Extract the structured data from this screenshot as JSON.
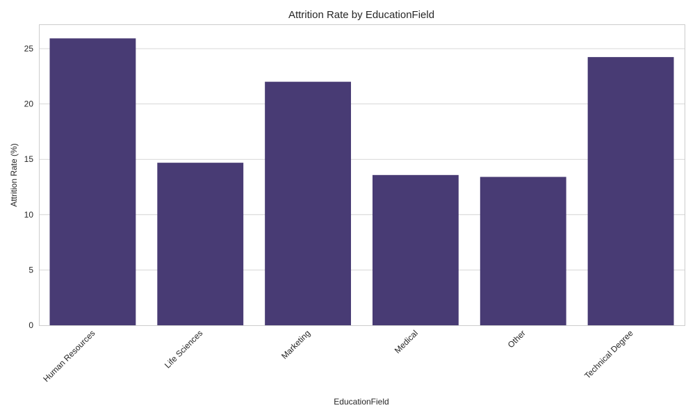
{
  "chart_data": {
    "type": "bar",
    "title": "Attrition Rate by EducationField",
    "xlabel": "EducationField",
    "ylabel": "Attrition Rate (%)",
    "categories": [
      "Human Resources",
      "Life Sciences",
      "Marketing",
      "Medical",
      "Other",
      "Technical Degree"
    ],
    "values": [
      25.93,
      14.69,
      22.01,
      13.58,
      13.41,
      24.24
    ],
    "ylim": [
      0,
      27.2
    ],
    "yticks": [
      0,
      5,
      10,
      15,
      20,
      25
    ],
    "grid": true,
    "x_tick_rotation_deg": 45,
    "colors": {
      "bar": "#483b74",
      "grid": "#cccccc",
      "text": "#262626"
    }
  }
}
